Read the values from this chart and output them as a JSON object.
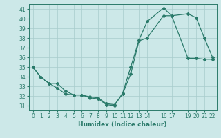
{
  "xlabel": "Humidex (Indice chaleur)",
  "background_color": "#cce8e8",
  "line_color": "#2a7a6a",
  "xlim": [
    -0.5,
    22.5
  ],
  "ylim": [
    30.5,
    41.5
  ],
  "yticks": [
    31,
    32,
    33,
    34,
    35,
    36,
    37,
    38,
    39,
    40,
    41
  ],
  "xticks": [
    0,
    1,
    2,
    3,
    4,
    5,
    6,
    7,
    8,
    9,
    10,
    11,
    12,
    13,
    14,
    16,
    17,
    19,
    20,
    21,
    22
  ],
  "line1_x": [
    0,
    1,
    2,
    3,
    4,
    5,
    6,
    7,
    8,
    9,
    10,
    11,
    12,
    13,
    14,
    16,
    17,
    19,
    20,
    21,
    22
  ],
  "line1_y": [
    35,
    33.9,
    33.3,
    32.8,
    32.2,
    32.1,
    32.1,
    31.8,
    31.7,
    31.1,
    31.0,
    32.3,
    35.0,
    37.8,
    39.7,
    41.1,
    40.3,
    40.5,
    40.1,
    38.0,
    36.0
  ],
  "line2_x": [
    0,
    1,
    2,
    3,
    4,
    5,
    6,
    7,
    8,
    9,
    10,
    11,
    12,
    13,
    14,
    16,
    17,
    19,
    20,
    21,
    22
  ],
  "line2_y": [
    35,
    33.9,
    33.3,
    33.3,
    32.5,
    32.1,
    32.1,
    31.9,
    31.8,
    31.2,
    31.1,
    32.2,
    34.3,
    37.7,
    38.0,
    40.3,
    40.3,
    35.9,
    35.9,
    35.8,
    35.8
  ]
}
